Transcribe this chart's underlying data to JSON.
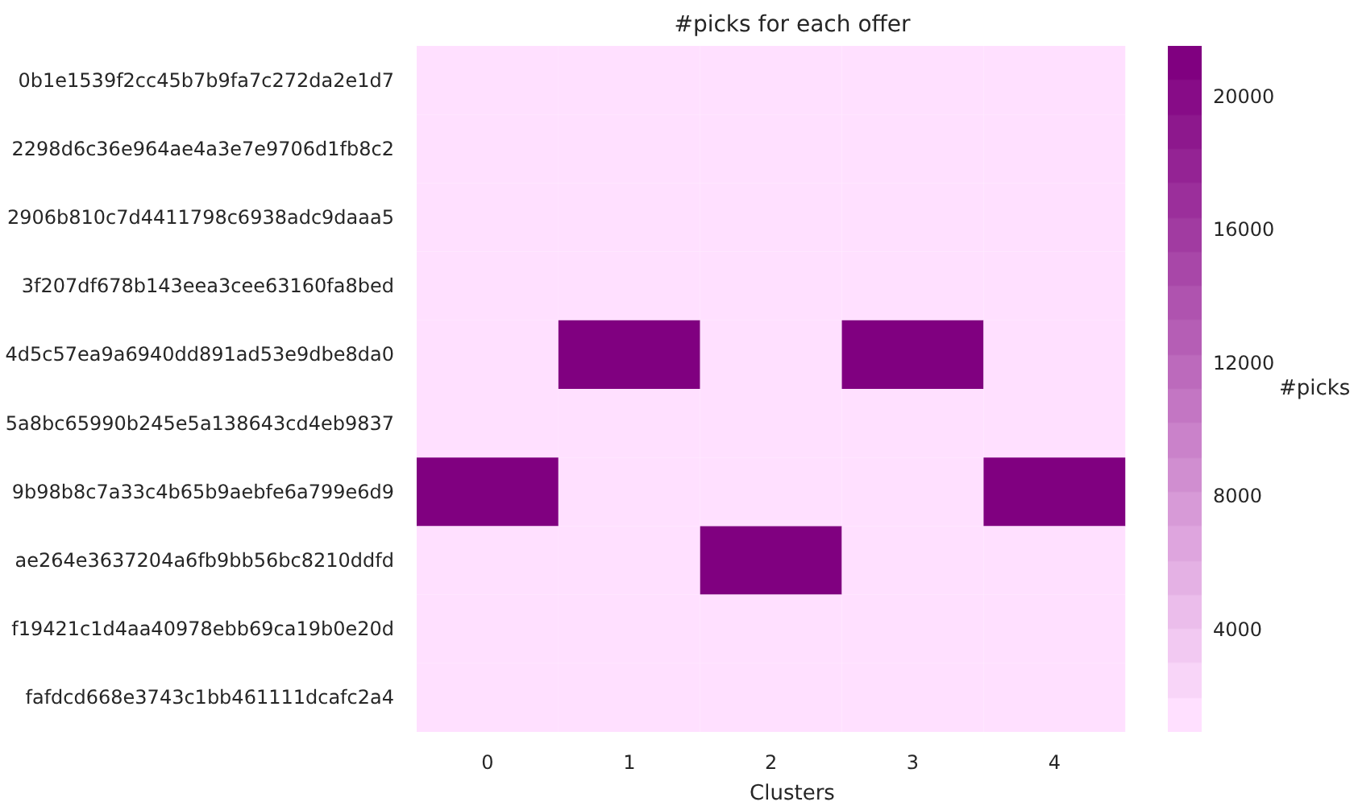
{
  "chart_data": {
    "type": "heatmap",
    "title": "#picks for each offer",
    "xlabel": "Clusters",
    "clabel": "#picks",
    "color": "#800080",
    "categories": [
      "0",
      "1",
      "2",
      "3",
      "4"
    ],
    "y_categories": [
      "0b1e1539f2cc45b7b9fa7c272da2e1d7",
      "2298d6c36e964ae4a3e7e9706d1fb8c2",
      "2906b810c7d4411798c6938adc9daaa5",
      "3f207df678b143eea3cee63160fa8bed",
      "4d5c57ea9a6940dd891ad53e9dbe8da0",
      "5a8bc65990b245e5a138643cd4eb9837",
      "9b98b8c7a33c4b65b9aebfe6a799e6d9",
      "ae264e3637204a6fb9bb56bc8210ddfd",
      "f19421c1d4aa40978ebb69ca19b0e20d",
      "fafdcd668e3743c1bb461111dcafc2a4"
    ],
    "cells": [
      [
        900,
        900,
        900,
        900,
        900
      ],
      [
        900,
        900,
        900,
        900,
        900
      ],
      [
        900,
        900,
        900,
        900,
        900
      ],
      [
        900,
        900,
        900,
        900,
        900
      ],
      [
        900,
        21500,
        900,
        21500,
        900
      ],
      [
        900,
        900,
        900,
        900,
        900
      ],
      [
        21500,
        900,
        900,
        900,
        21500
      ],
      [
        900,
        900,
        21500,
        900,
        900
      ],
      [
        900,
        900,
        900,
        900,
        900
      ],
      [
        900,
        900,
        900,
        900,
        900
      ]
    ],
    "clim": [
      900,
      21500
    ],
    "cticks": [
      4000,
      8000,
      12000,
      16000,
      20000
    ]
  }
}
